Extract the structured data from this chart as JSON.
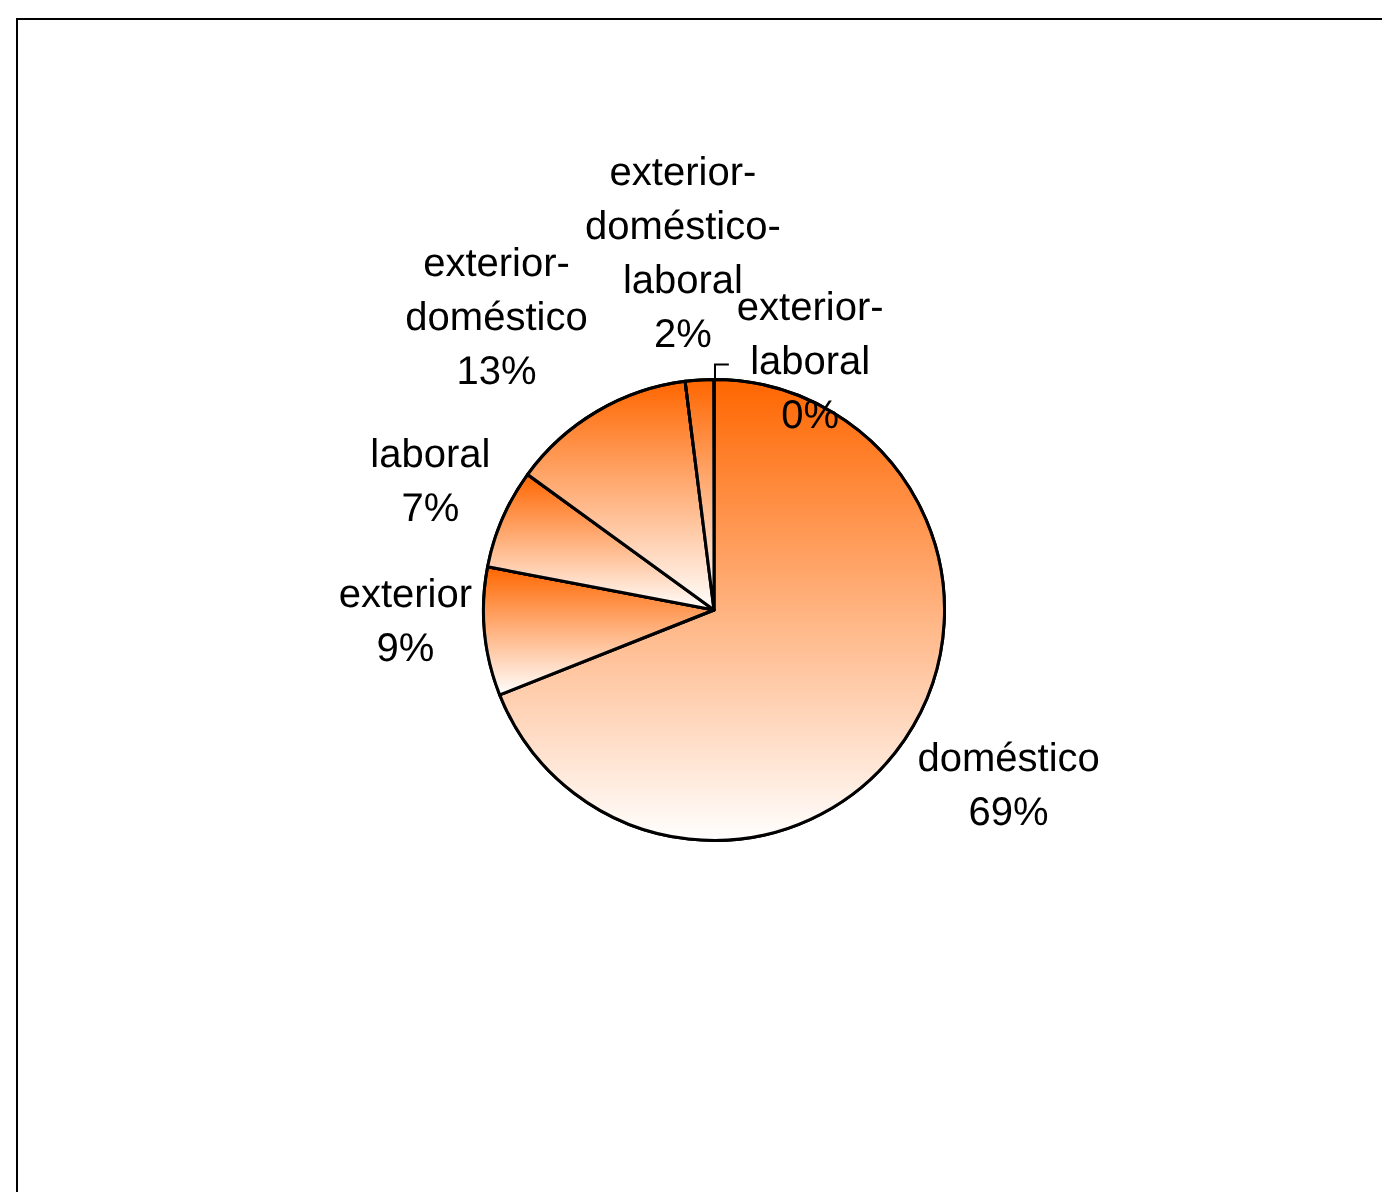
{
  "chart_data": {
    "type": "pie",
    "categories": [
      "doméstico",
      "exterior",
      "laboral",
      "exterior-doméstico",
      "exterior-doméstico-laboral",
      "exterior-laboral"
    ],
    "values": [
      69,
      9,
      7,
      13,
      2,
      0
    ],
    "colors": [
      "#ff6600",
      "#ff6600",
      "#ff6600",
      "#ff6600",
      "#ff6600",
      "#ff6600"
    ],
    "value_labels": [
      "69%",
      "9%",
      "7%",
      "13%",
      "2%",
      "0%"
    ]
  }
}
